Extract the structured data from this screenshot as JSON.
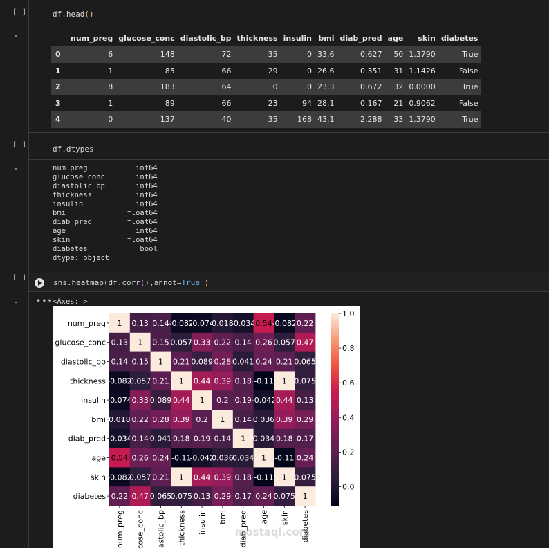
{
  "cells": {
    "head": {
      "bracket": "[ ]",
      "code": "df.head",
      "code_parens": "()"
    },
    "dtypes": {
      "bracket": "[ ]",
      "code": "df.dtypes"
    },
    "heatmap": {
      "bracket": "[ ]",
      "code_pre": "sns.heatmap(df.corr",
      "code_parens": "()",
      "code_mid": ",annot=",
      "code_kw": "True",
      "code_post": "  )",
      "output_label": "<Axes: >"
    }
  },
  "dataframe": {
    "columns": [
      "",
      "num_preg",
      "glucose_conc",
      "diastolic_bp",
      "thickness",
      "insulin",
      "bmi",
      "diab_pred",
      "age",
      "skin",
      "diabetes"
    ],
    "rows": [
      [
        "0",
        "6",
        "148",
        "72",
        "35",
        "0",
        "33.6",
        "0.627",
        "50",
        "1.3790",
        "True"
      ],
      [
        "1",
        "1",
        "85",
        "66",
        "29",
        "0",
        "26.6",
        "0.351",
        "31",
        "1.1426",
        "False"
      ],
      [
        "2",
        "8",
        "183",
        "64",
        "0",
        "0",
        "23.3",
        "0.672",
        "32",
        "0.0000",
        "True"
      ],
      [
        "3",
        "1",
        "89",
        "66",
        "23",
        "94",
        "28.1",
        "0.167",
        "21",
        "0.9062",
        "False"
      ],
      [
        "4",
        "0",
        "137",
        "40",
        "35",
        "168",
        "43.1",
        "2.288",
        "33",
        "1.3790",
        "True"
      ]
    ]
  },
  "dtypes_output": "num_preg           int64\nglucose_conc       int64\ndiastolic_bp       int64\nthickness          int64\ninsulin            int64\nbmi              float64\ndiab_pred        float64\nage                int64\nskin             float64\ndiabetes            bool\ndtype: object",
  "chart_data": {
    "type": "heatmap",
    "title": "",
    "rows": [
      "num_preg",
      "glucose_conc",
      "diastolic_bp",
      "thickness",
      "insulin",
      "bmi",
      "diab_pred",
      "age",
      "skin",
      "diabetes"
    ],
    "cols": [
      "num_preg",
      "glucose_conc",
      "diastolic_bp",
      "thickness",
      "insulin",
      "bmi",
      "diab_pred",
      "age",
      "skin",
      "diabetes"
    ],
    "values": [
      [
        1,
        0.13,
        0.14,
        -0.082,
        -0.074,
        0.018,
        -0.034,
        0.54,
        -0.082,
        0.22
      ],
      [
        0.13,
        1,
        0.15,
        0.057,
        0.33,
        0.22,
        0.14,
        0.26,
        0.057,
        0.47
      ],
      [
        0.14,
        0.15,
        1,
        0.21,
        0.089,
        0.28,
        0.041,
        0.24,
        0.21,
        0.065
      ],
      [
        -0.082,
        0.057,
        0.21,
        1,
        0.44,
        0.39,
        0.18,
        -0.11,
        1,
        0.075
      ],
      [
        -0.074,
        0.33,
        0.089,
        0.44,
        1,
        0.2,
        0.19,
        -0.042,
        0.44,
        0.13
      ],
      [
        0.018,
        0.22,
        0.28,
        0.39,
        0.2,
        1,
        0.14,
        0.036,
        0.39,
        0.29
      ],
      [
        -0.034,
        0.14,
        0.041,
        0.18,
        0.19,
        0.14,
        1,
        0.034,
        0.18,
        0.17
      ],
      [
        0.54,
        0.26,
        0.24,
        -0.11,
        -0.042,
        0.036,
        0.034,
        1,
        -0.11,
        0.24
      ],
      [
        -0.082,
        0.057,
        0.21,
        1,
        0.44,
        0.39,
        0.18,
        -0.11,
        1,
        0.075
      ],
      [
        0.22,
        0.47,
        0.065,
        0.075,
        0.13,
        0.29,
        0.17,
        0.24,
        0.075,
        1
      ]
    ],
    "labels": [
      [
        "1",
        "0.13",
        "0.14",
        "-0.082",
        "-0.074",
        "0.018",
        "-0.034",
        "0.54",
        "-0.082",
        "0.22"
      ],
      [
        "0.13",
        "1",
        "0.15",
        "0.057",
        "0.33",
        "0.22",
        "0.14",
        "0.26",
        "0.057",
        "0.47"
      ],
      [
        "0.14",
        "0.15",
        "1",
        "0.21",
        "0.089",
        "0.28",
        "0.041",
        "0.24",
        "0.21",
        "0.065"
      ],
      [
        "-0.082",
        "0.057",
        "0.21",
        "1",
        "0.44",
        "0.39",
        "0.18",
        "-0.11",
        "1",
        "0.075"
      ],
      [
        "-0.074",
        "0.33",
        "0.089",
        "0.44",
        "1",
        "0.2",
        "0.19",
        "-0.042",
        "0.44",
        "0.13"
      ],
      [
        "0.018",
        "0.22",
        "0.28",
        "0.39",
        "0.2",
        "1",
        "0.14",
        "0.036",
        "0.39",
        "0.29"
      ],
      [
        "-0.034",
        "0.14",
        "0.041",
        "0.18",
        "0.19",
        "0.14",
        "1",
        "0.034",
        "0.18",
        "0.17"
      ],
      [
        "0.54",
        "0.26",
        "0.24",
        "-0.11",
        "-0.042",
        "0.036",
        "0.034",
        "1",
        "-0.11",
        "0.24"
      ],
      [
        "-0.082",
        "0.057",
        "0.21",
        "1",
        "0.44",
        "0.39",
        "0.18",
        "-0.11",
        "1",
        "0.075"
      ],
      [
        "0.22",
        "0.47",
        "0.065",
        "0.075",
        "0.13",
        "0.29",
        "0.17",
        "0.24",
        "0.075",
        "1"
      ]
    ],
    "colorbar": {
      "ticks": [
        "1.0",
        "0.8",
        "0.6",
        "0.4",
        "0.2",
        "0.0"
      ],
      "range": [
        -0.11,
        1.0
      ],
      "colormap": "rocket"
    },
    "watermark": "mostaql.com"
  }
}
